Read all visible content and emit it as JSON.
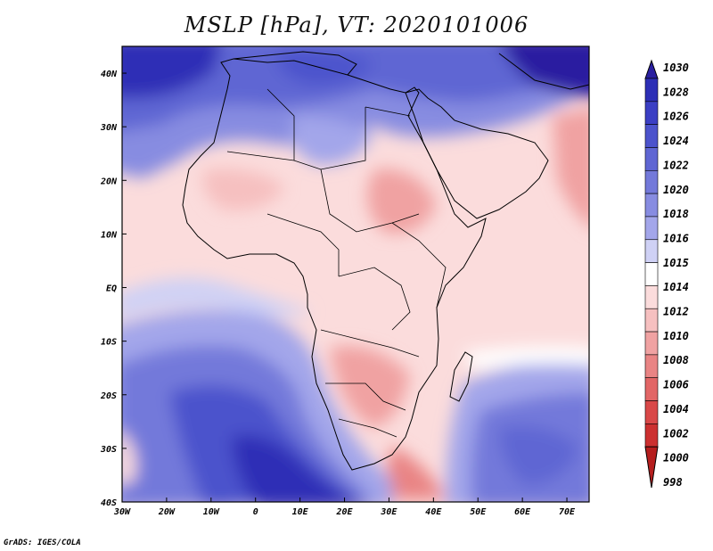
{
  "title": "MSLP [hPa], VT: 2020101006",
  "credit": "GrADS: IGES/COLA",
  "map": {
    "lon_range": [
      -30,
      75
    ],
    "lat_range": [
      -40,
      45
    ],
    "x_ticks": [
      {
        "lon": -30,
        "label": "30W"
      },
      {
        "lon": -20,
        "label": "20W"
      },
      {
        "lon": -10,
        "label": "10W"
      },
      {
        "lon": 0,
        "label": "0"
      },
      {
        "lon": 10,
        "label": "10E"
      },
      {
        "lon": 20,
        "label": "20E"
      },
      {
        "lon": 30,
        "label": "30E"
      },
      {
        "lon": 40,
        "label": "40E"
      },
      {
        "lon": 50,
        "label": "50E"
      },
      {
        "lon": 60,
        "label": "60E"
      },
      {
        "lon": 70,
        "label": "70E"
      }
    ],
    "y_ticks": [
      {
        "lat": 40,
        "label": "40N"
      },
      {
        "lat": 30,
        "label": "30N"
      },
      {
        "lat": 20,
        "label": "20N"
      },
      {
        "lat": 10,
        "label": "10N"
      },
      {
        "lat": 0,
        "label": "EQ"
      },
      {
        "lat": -10,
        "label": "10S"
      },
      {
        "lat": -20,
        "label": "20S"
      },
      {
        "lat": -30,
        "label": "30S"
      },
      {
        "lat": -40,
        "label": "40S"
      }
    ],
    "background_color": "#fbdcdc"
  },
  "colorbar": {
    "labels": [
      "1030",
      "1028",
      "1026",
      "1024",
      "1022",
      "1020",
      "1018",
      "1016",
      "1015",
      "1014",
      "1012",
      "1010",
      "1008",
      "1006",
      "1004",
      "1002",
      "1000",
      "998"
    ],
    "colors": [
      "#2a1fa0",
      "#2d2fb6",
      "#3b3fc4",
      "#4c53cc",
      "#5f66d3",
      "#7379da",
      "#878ce1",
      "#a3a6ea",
      "#cfd1f5",
      "#ffffff",
      "#fbdcdc",
      "#f6c0c0",
      "#f0a2a2",
      "#e98484",
      "#e26666",
      "#d94848",
      "#cc3030",
      "#b51e1e"
    ]
  }
}
